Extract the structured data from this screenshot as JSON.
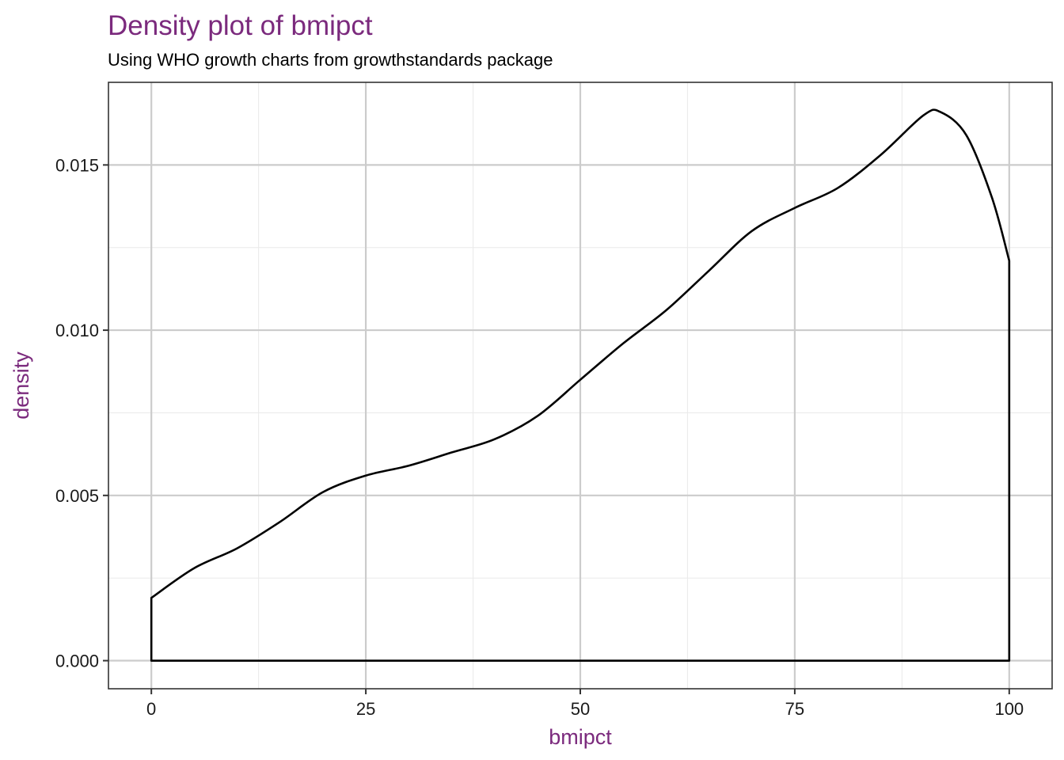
{
  "chart_data": {
    "type": "area",
    "title": "Density plot of bmipct",
    "subtitle": "Using WHO growth charts from growthstandards package",
    "xlabel": "bmipct",
    "ylabel": "density",
    "xlim": [
      -5,
      105
    ],
    "ylim": [
      -0.00085,
      0.0175
    ],
    "x_ticks": [
      0,
      25,
      50,
      75,
      100
    ],
    "x_tick_labels": [
      "0",
      "25",
      "50",
      "75",
      "100"
    ],
    "y_ticks": [
      0,
      0.005,
      0.01,
      0.015
    ],
    "y_tick_labels": [
      "0.000",
      "0.005",
      "0.010",
      "0.015"
    ],
    "x_minor_ticks": [
      12.5,
      37.5,
      62.5,
      87.5
    ],
    "y_minor_ticks": [
      0.0025,
      0.0075,
      0.0125
    ],
    "grid": true,
    "legend": "none",
    "series": [
      {
        "x": [
          0,
          5,
          10,
          15,
          20,
          25,
          30,
          35,
          40,
          45,
          50,
          55,
          60,
          65,
          70,
          75,
          80,
          85,
          90,
          92,
          95,
          98,
          100
        ],
        "y": [
          0.0019,
          0.0028,
          0.0034,
          0.0042,
          0.0051,
          0.0056,
          0.0059,
          0.0063,
          0.0067,
          0.0074,
          0.0085,
          0.0096,
          0.0106,
          0.0118,
          0.013,
          0.0137,
          0.0143,
          0.0153,
          0.0165,
          0.0166,
          0.0159,
          0.014,
          0.0121
        ]
      }
    ]
  },
  "colors": {
    "title": "#7b2a7d",
    "axis_title": "#7b2a7d",
    "line": "#000000",
    "background": "#ffffff"
  }
}
